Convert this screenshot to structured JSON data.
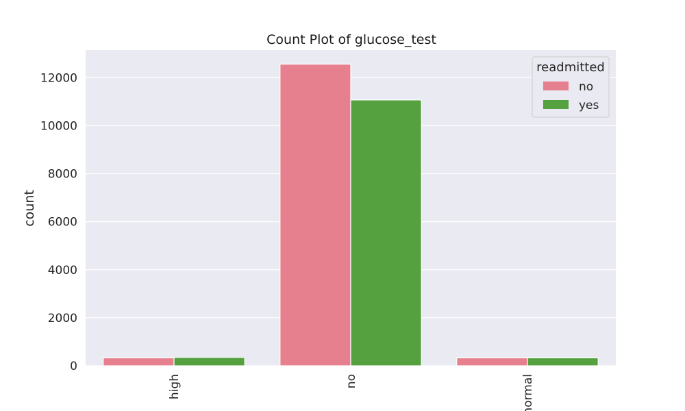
{
  "chart_data": {
    "type": "bar",
    "title": "Count Plot of glucose_test",
    "xlabel": "",
    "ylabel": "count",
    "categories": [
      "high",
      "no",
      "normal"
    ],
    "series": [
      {
        "name": "no",
        "values": [
          330,
          12560,
          330
        ],
        "color": "#e6808f"
      },
      {
        "name": "yes",
        "values": [
          350,
          11070,
          330
        ],
        "color": "#55a13f"
      }
    ],
    "ylim": [
      0,
      13150
    ],
    "yticks": [
      0,
      2000,
      4000,
      6000,
      8000,
      10000,
      12000
    ],
    "grid": true,
    "legend": {
      "title": "readmitted",
      "position": "top-right"
    },
    "background": "#eaeaf2"
  }
}
